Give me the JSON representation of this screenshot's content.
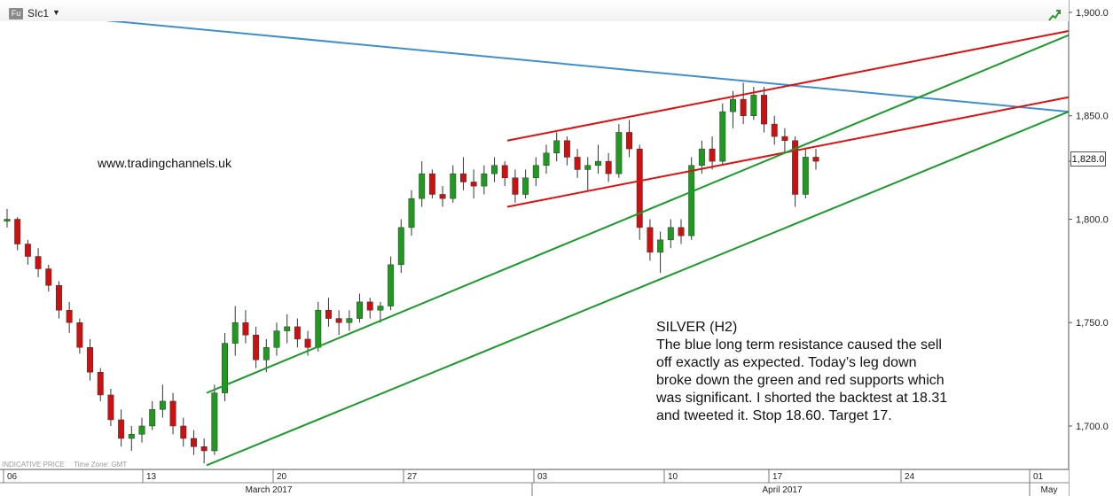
{
  "header": {
    "badge": "Fu",
    "symbol": "SIc1",
    "caret": "▼",
    "icon": "trend-up-icon"
  },
  "watermark": "www.tradingchannels.uk",
  "annotation": {
    "title": "SILVER (H2)",
    "body": "The blue long term resistance caused the sell off exactly as expected. Today’s leg down broke down the green and red supports which was significant. I shorted the backtest at 18.31 and tweeted it. Stop 18.60. Target 17."
  },
  "footer": {
    "price_type": "INDICATIVE PRICE",
    "time_zone": "Time Zone: GMT"
  },
  "chart_data": {
    "type": "candlestick",
    "yaxis": {
      "ticks": [
        1700,
        1750,
        1800,
        1850,
        1900
      ],
      "tick_labels": [
        "1,700.0",
        "1,750.0",
        "1,800.0",
        "1,850.0",
        "1,900.0"
      ],
      "range": [
        1679,
        1906
      ],
      "position": "right"
    },
    "xaxis": {
      "day_ticks": [
        "06",
        "13",
        "20",
        "27",
        "03",
        "10",
        "17",
        "24",
        "01"
      ],
      "month_labels": [
        "March 2017",
        "April 2017",
        "May"
      ]
    },
    "last_price": 1828,
    "last_price_label": "1,828.0",
    "colors": {
      "up": "#1e9a1e",
      "down": "#cc1111",
      "blue_line": "#3d8fd1",
      "red_line": "#dd1111",
      "green_line": "#1a9a2a"
    },
    "candles": [
      [
        1799,
        1805,
        1796,
        1800
      ],
      [
        1800,
        1801,
        1785,
        1788
      ],
      [
        1788,
        1790,
        1778,
        1782
      ],
      [
        1782,
        1786,
        1772,
        1776
      ],
      [
        1776,
        1778,
        1765,
        1768
      ],
      [
        1768,
        1770,
        1752,
        1756
      ],
      [
        1756,
        1760,
        1745,
        1750
      ],
      [
        1750,
        1752,
        1735,
        1738
      ],
      [
        1738,
        1742,
        1722,
        1726
      ],
      [
        1726,
        1728,
        1712,
        1715
      ],
      [
        1715,
        1718,
        1700,
        1703
      ],
      [
        1703,
        1708,
        1690,
        1694
      ],
      [
        1694,
        1700,
        1688,
        1696
      ],
      [
        1696,
        1704,
        1692,
        1700
      ],
      [
        1700,
        1712,
        1698,
        1708
      ],
      [
        1708,
        1720,
        1704,
        1712
      ],
      [
        1712,
        1716,
        1696,
        1700
      ],
      [
        1700,
        1704,
        1690,
        1694
      ],
      [
        1694,
        1698,
        1686,
        1690
      ],
      [
        1690,
        1694,
        1682,
        1688
      ],
      [
        1688,
        1720,
        1686,
        1716
      ],
      [
        1716,
        1745,
        1712,
        1740
      ],
      [
        1740,
        1758,
        1734,
        1750
      ],
      [
        1750,
        1756,
        1740,
        1744
      ],
      [
        1744,
        1748,
        1728,
        1732
      ],
      [
        1732,
        1742,
        1726,
        1738
      ],
      [
        1738,
        1750,
        1734,
        1746
      ],
      [
        1746,
        1754,
        1740,
        1748
      ],
      [
        1748,
        1752,
        1738,
        1742
      ],
      [
        1742,
        1746,
        1734,
        1738
      ],
      [
        1738,
        1760,
        1736,
        1756
      ],
      [
        1756,
        1762,
        1748,
        1752
      ],
      [
        1752,
        1756,
        1744,
        1750
      ],
      [
        1750,
        1756,
        1746,
        1752
      ],
      [
        1752,
        1764,
        1750,
        1760
      ],
      [
        1760,
        1762,
        1752,
        1756
      ],
      [
        1756,
        1760,
        1750,
        1758
      ],
      [
        1758,
        1782,
        1756,
        1778
      ],
      [
        1778,
        1800,
        1774,
        1796
      ],
      [
        1796,
        1814,
        1792,
        1810
      ],
      [
        1810,
        1828,
        1806,
        1822
      ],
      [
        1822,
        1824,
        1810,
        1812
      ],
      [
        1812,
        1816,
        1806,
        1810
      ],
      [
        1810,
        1826,
        1808,
        1822
      ],
      [
        1822,
        1830,
        1814,
        1818
      ],
      [
        1818,
        1824,
        1810,
        1816
      ],
      [
        1816,
        1826,
        1812,
        1822
      ],
      [
        1822,
        1830,
        1818,
        1826
      ],
      [
        1826,
        1828,
        1816,
        1820
      ],
      [
        1820,
        1824,
        1808,
        1812
      ],
      [
        1812,
        1824,
        1810,
        1820
      ],
      [
        1820,
        1830,
        1816,
        1826
      ],
      [
        1826,
        1836,
        1822,
        1832
      ],
      [
        1832,
        1842,
        1828,
        1838
      ],
      [
        1838,
        1840,
        1826,
        1830
      ],
      [
        1830,
        1834,
        1820,
        1824
      ],
      [
        1824,
        1830,
        1814,
        1826
      ],
      [
        1826,
        1836,
        1822,
        1828
      ],
      [
        1828,
        1832,
        1818,
        1822
      ],
      [
        1822,
        1846,
        1820,
        1842
      ],
      [
        1842,
        1848,
        1830,
        1834
      ],
      [
        1834,
        1836,
        1790,
        1796
      ],
      [
        1796,
        1800,
        1780,
        1784
      ],
      [
        1784,
        1794,
        1774,
        1790
      ],
      [
        1790,
        1800,
        1786,
        1796
      ],
      [
        1796,
        1800,
        1788,
        1792
      ],
      [
        1792,
        1830,
        1790,
        1826
      ],
      [
        1826,
        1838,
        1822,
        1834
      ],
      [
        1834,
        1840,
        1824,
        1828
      ],
      [
        1828,
        1856,
        1826,
        1852
      ],
      [
        1852,
        1862,
        1844,
        1858
      ],
      [
        1858,
        1866,
        1846,
        1850
      ],
      [
        1850,
        1864,
        1848,
        1860
      ],
      [
        1860,
        1864,
        1842,
        1846
      ],
      [
        1846,
        1850,
        1836,
        1840
      ],
      [
        1840,
        1844,
        1832,
        1838
      ],
      [
        1838,
        1840,
        1806,
        1812
      ],
      [
        1812,
        1834,
        1810,
        1830
      ],
      [
        1830,
        1834,
        1824,
        1828
      ]
    ],
    "trendlines": [
      {
        "name": "blue-resistance",
        "color": "blue_line",
        "points": [
          [
            0,
            1901
          ],
          [
            1205,
            1852
          ]
        ]
      },
      {
        "name": "red-channel-upper",
        "color": "red_line",
        "points": [
          [
            572,
            1838
          ],
          [
            1205,
            1891
          ]
        ]
      },
      {
        "name": "red-channel-lower",
        "color": "red_line",
        "points": [
          [
            572,
            1806
          ],
          [
            1205,
            1859
          ]
        ]
      },
      {
        "name": "green-support-upper",
        "color": "green_line",
        "points": [
          [
            233,
            1716
          ],
          [
            1205,
            1889
          ]
        ]
      },
      {
        "name": "green-support-lower",
        "color": "green_line",
        "points": [
          [
            233,
            1681
          ],
          [
            1205,
            1852
          ]
        ]
      }
    ]
  }
}
